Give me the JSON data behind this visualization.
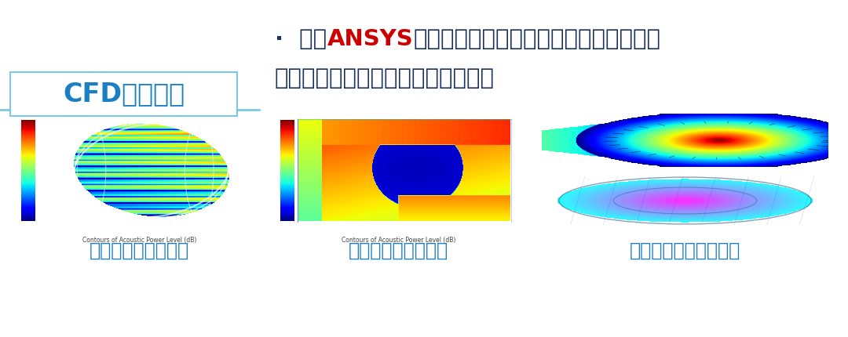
{
  "bg_color": "#ffffff",
  "title_text": "CFD模拟分析",
  "title_color": "#1b7fc4",
  "title_border_color": "#7ec8e3",
  "title_fontsize": 24,
  "bullet_dot": "·",
  "bullet_prefix": " 采用",
  "bullet_ansys": "ANSYS",
  "bullet_suffix": "仿真模拟，针对不同距离、不同叶片数、",
  "bullet_line2": "叶片角度等分析，找出最优的方案。",
  "bullet_color": "#1a3060",
  "ansys_color": "#cc0000",
  "bullet_fontsize": 21,
  "caption1": "风轮表面噪声源分布",
  "caption2": "蜗壳表面噪声源分布",
  "caption3": "风机内部截面速度分布",
  "caption_color": "#1b7fc4",
  "caption_fontsize": 17,
  "divider_color": "#7ec8e3",
  "contour_label": "Contours of Acoustic Power Level (dB)"
}
